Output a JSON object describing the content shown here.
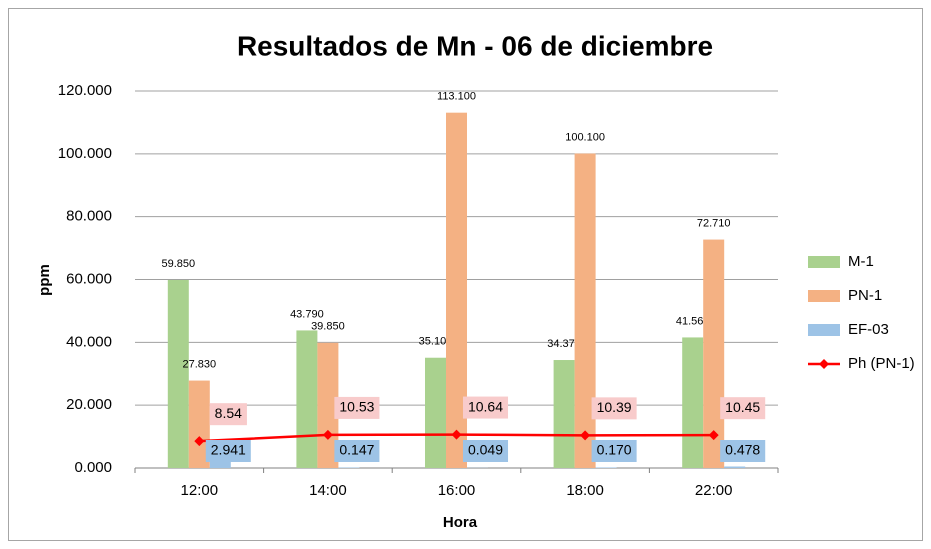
{
  "chart_data": {
    "type": "bar",
    "title": "Resultados de Mn - 06 de diciembre",
    "xlabel": "Hora",
    "ylabel": "ppm",
    "categories": [
      "12:00",
      "14:00",
      "16:00",
      "18:00",
      "22:00"
    ],
    "series": [
      {
        "name": "M-1",
        "color": "#a9d18e",
        "values": [
          59.85,
          43.79,
          35.1,
          34.37,
          41.56
        ],
        "value_labels": [
          "59.850",
          "43.790",
          "35.100",
          "34.370",
          "41.560"
        ]
      },
      {
        "name": "PN-1",
        "color": "#f4b183",
        "values": [
          27.83,
          39.85,
          113.1,
          100.1,
          72.71
        ],
        "value_labels": [
          "27.830",
          "39.850",
          "113.100",
          "100.100",
          "72.710"
        ]
      },
      {
        "name": "EF-03",
        "color": "#9dc3e6",
        "values": [
          2.941,
          0.147,
          0.049,
          0.17,
          0.478
        ],
        "value_labels": [
          "2.941",
          "0.147",
          "0.049",
          "0.170",
          "0.478"
        ]
      },
      {
        "name": "Ph (PN-1)",
        "color": "#ff0000",
        "type": "line",
        "values": [
          8.54,
          10.53,
          10.64,
          10.39,
          10.45
        ]
      }
    ],
    "ylim": [
      0,
      120
    ],
    "yticks": [
      {
        "value": 0,
        "label": "0.000"
      },
      {
        "value": 20,
        "label": "20.000"
      },
      {
        "value": 40,
        "label": "40.000"
      },
      {
        "value": 60,
        "label": "60.000"
      },
      {
        "value": 80,
        "label": "80.000"
      },
      {
        "value": 100,
        "label": "100.000"
      },
      {
        "value": 120,
        "label": "120.000"
      }
    ],
    "grid": true,
    "legend": "right"
  }
}
